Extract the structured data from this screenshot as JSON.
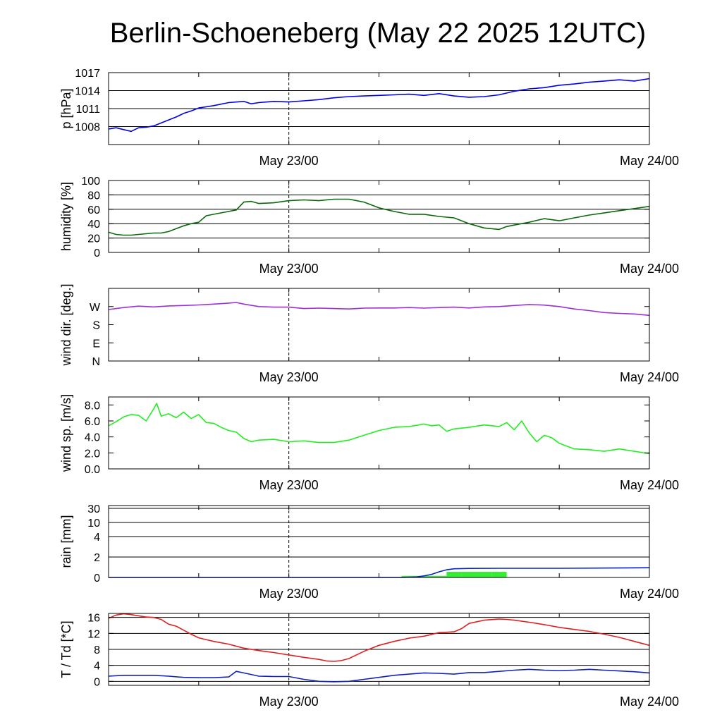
{
  "title": "Berlin-Schoeneberg (May 22 2025 12UTC)",
  "colors": {
    "pressure": "#0000ee",
    "humidity": "#0a6a0a",
    "wind_dir": "#9b30d8",
    "wind_speed": "#22ee22",
    "rain_cumulative": "#0022cc",
    "rain_bars": "#33ee33",
    "temperature": "#e02020",
    "dewpoint": "#1020c0"
  },
  "chart_data": [
    {
      "type": "line",
      "panel": "pressure",
      "ylabel": "p [hPa]",
      "ylim": [
        1005,
        1017
      ],
      "yticks": [
        1008,
        1011,
        1014,
        1017
      ],
      "ytick_labels": [
        "1008",
        "1011",
        "1014",
        "1017"
      ],
      "grid": true,
      "xlim_hours": [
        0,
        36
      ],
      "xtick_labels": [
        {
          "hour": 12,
          "label": "May 23/00"
        },
        {
          "hour": 36,
          "label": "May 24/00"
        }
      ],
      "series": [
        {
          "key": "pressure",
          "x": [
            0,
            0.5,
            1,
            1.5,
            2,
            2.5,
            3,
            3.5,
            4,
            4.5,
            5,
            5.5,
            6,
            6.5,
            7,
            8,
            9,
            9.5,
            10,
            11,
            12,
            13,
            14,
            15,
            16,
            17,
            18,
            19,
            20,
            21,
            22,
            23,
            24,
            25,
            26,
            27,
            28,
            29,
            30,
            31,
            32,
            33,
            34,
            35,
            36
          ],
          "y": [
            1007.6,
            1007.8,
            1007.5,
            1007.2,
            1007.8,
            1007.9,
            1008.1,
            1008.6,
            1009.1,
            1009.6,
            1010.2,
            1010.6,
            1011.1,
            1011.3,
            1011.5,
            1012.0,
            1012.2,
            1011.8,
            1012.0,
            1012.2,
            1012.1,
            1012.3,
            1012.5,
            1012.8,
            1013.0,
            1013.1,
            1013.2,
            1013.3,
            1013.4,
            1013.2,
            1013.5,
            1013.1,
            1012.9,
            1013.0,
            1013.3,
            1013.9,
            1014.3,
            1014.5,
            1014.9,
            1015.1,
            1015.4,
            1015.6,
            1015.8,
            1015.6,
            1016.0
          ]
        }
      ]
    },
    {
      "type": "line",
      "panel": "humidity",
      "ylabel": "humidity [%]",
      "ylim": [
        0,
        100
      ],
      "yticks": [
        0,
        20,
        40,
        60,
        80,
        100
      ],
      "ytick_labels": [
        "0",
        "20",
        "40",
        "60",
        "80",
        "100"
      ],
      "grid": true,
      "xlim_hours": [
        0,
        36
      ],
      "xtick_labels": [
        {
          "hour": 12,
          "label": "May 23/00"
        },
        {
          "hour": 36,
          "label": "May 24/00"
        }
      ],
      "series": [
        {
          "key": "humidity",
          "x": [
            0,
            0.5,
            1,
            1.5,
            2,
            2.5,
            3,
            3.5,
            4,
            4.5,
            5,
            5.5,
            6,
            6.5,
            7,
            7.5,
            8,
            8.5,
            9,
            9.5,
            10,
            11,
            12,
            13,
            14,
            15,
            16,
            17,
            18,
            19,
            20,
            21,
            22,
            23,
            24,
            24.5,
            25,
            26,
            26.5,
            27,
            27.5,
            28,
            29,
            30,
            31,
            32,
            33,
            34,
            35,
            36
          ],
          "y": [
            28,
            25,
            24,
            24,
            25,
            26,
            27,
            27,
            29,
            33,
            37,
            40,
            42,
            51,
            53,
            55,
            57,
            59,
            70,
            71,
            68,
            69,
            72,
            73,
            72,
            74,
            74,
            70,
            62,
            57,
            53,
            53,
            50,
            48,
            40,
            37,
            34,
            32,
            36,
            38,
            40,
            42,
            47,
            44,
            48,
            52,
            55,
            58,
            61,
            64
          ]
        }
      ]
    },
    {
      "type": "line",
      "panel": "wind_direction",
      "ylabel": "wind dir. [deg.]",
      "ylim": [
        0,
        360
      ],
      "yticks": [
        0,
        90,
        180,
        270
      ],
      "ytick_labels": [
        "N",
        "E",
        "S",
        "W"
      ],
      "grid": false,
      "xlim_hours": [
        0,
        36
      ],
      "xtick_labels": [
        {
          "hour": 12,
          "label": "May 23/00"
        },
        {
          "hour": 36,
          "label": "May 24/00"
        }
      ],
      "series": [
        {
          "key": "wind_dir",
          "x": [
            0,
            1,
            2,
            3,
            4,
            5,
            6,
            7,
            8,
            8.5,
            9,
            10,
            11,
            12,
            13,
            14,
            15,
            16,
            17,
            18,
            19,
            20,
            21,
            22,
            23,
            24,
            25,
            26,
            27,
            28,
            29,
            30,
            31,
            32,
            33,
            34,
            35,
            36
          ],
          "y": [
            255,
            265,
            272,
            268,
            273,
            275,
            278,
            282,
            287,
            290,
            282,
            270,
            267,
            267,
            260,
            262,
            260,
            258,
            262,
            263,
            263,
            265,
            262,
            265,
            267,
            263,
            268,
            270,
            275,
            280,
            277,
            270,
            258,
            250,
            240,
            236,
            233,
            226
          ]
        }
      ]
    },
    {
      "type": "line",
      "panel": "wind_speed",
      "ylabel": "wind sp. [m/s]",
      "ylim": [
        0,
        9
      ],
      "yticks": [
        0,
        2,
        4,
        6,
        8
      ],
      "ytick_labels": [
        "0.0",
        "2.0",
        "4.0",
        "6.0",
        "8.0"
      ],
      "grid": false,
      "xlim_hours": [
        0,
        36
      ],
      "xtick_labels": [
        {
          "hour": 12,
          "label": "May 23/00"
        },
        {
          "hour": 36,
          "label": "May 24/00"
        }
      ],
      "series": [
        {
          "key": "wind_speed",
          "x": [
            0,
            0.5,
            1,
            1.5,
            2,
            2.5,
            3,
            3.2,
            3.5,
            4,
            4.5,
            5,
            5.5,
            6,
            6.5,
            7,
            7.5,
            8,
            8.5,
            9,
            9.5,
            10,
            11,
            12,
            13,
            14,
            15,
            16,
            17,
            18,
            19,
            20,
            21,
            21.5,
            22,
            22.5,
            23,
            24,
            25,
            26,
            26.5,
            27,
            27.5,
            28,
            28.5,
            29,
            29.5,
            30,
            31,
            32,
            33,
            34,
            35,
            36
          ],
          "y": [
            5.4,
            5.9,
            6.5,
            6.8,
            6.7,
            6.0,
            7.5,
            8.2,
            6.6,
            6.9,
            6.4,
            7.1,
            6.3,
            6.8,
            5.8,
            5.7,
            5.2,
            4.8,
            4.6,
            3.8,
            3.4,
            3.6,
            3.7,
            3.4,
            3.5,
            3.3,
            3.3,
            3.6,
            4.2,
            4.8,
            5.2,
            5.3,
            5.6,
            5.4,
            5.5,
            4.7,
            5.0,
            5.2,
            5.5,
            5.3,
            5.8,
            4.9,
            6.0,
            4.5,
            3.4,
            4.2,
            3.9,
            3.2,
            2.5,
            2.4,
            2.2,
            2.5,
            2.2,
            1.9
          ]
        }
      ]
    },
    {
      "type": "bar",
      "panel": "rain",
      "ylabel": "rain [mm]",
      "ylim": [
        0,
        30
      ],
      "yscale": "nonlinear",
      "yticks": [
        0,
        2,
        4,
        10,
        30
      ],
      "ytick_labels": [
        "0",
        "2",
        "4",
        "10",
        "30"
      ],
      "grid": true,
      "xlim_hours": [
        0,
        36
      ],
      "xtick_labels": [
        {
          "hour": 12,
          "label": "May 23/00"
        },
        {
          "hour": 36,
          "label": "May 24/00"
        }
      ],
      "bars": {
        "key": "rain_bars",
        "hours": [
          19.5,
          20.5,
          21.5,
          22.5,
          23.5,
          24.5,
          25.5
        ],
        "values": [
          0.15,
          0.15,
          0.15,
          0.55,
          0.55,
          0.55,
          0.55
        ]
      },
      "series": [
        {
          "key": "rain_cumulative",
          "x": [
            0,
            19.5,
            20.5,
            21,
            21.5,
            22,
            22.5,
            23,
            24,
            26,
            30,
            36
          ],
          "y": [
            0,
            0,
            0.05,
            0.15,
            0.3,
            0.55,
            0.75,
            0.85,
            0.88,
            0.9,
            0.9,
            0.95
          ]
        }
      ]
    },
    {
      "type": "line",
      "panel": "temperature",
      "ylabel": "T / Td [*C]",
      "ylim": [
        -1,
        17
      ],
      "yticks": [
        0,
        4,
        8,
        12,
        16
      ],
      "ytick_labels": [
        "0",
        "4",
        "8",
        "12",
        "16"
      ],
      "grid": true,
      "xlim_hours": [
        0,
        36
      ],
      "xtick_labels": [
        {
          "hour": 12,
          "label": "May 23/00"
        },
        {
          "hour": 36,
          "label": "May 24/00"
        }
      ],
      "series": [
        {
          "key": "temperature",
          "x": [
            0,
            0.5,
            1,
            1.5,
            2,
            2.5,
            3,
            3.5,
            4,
            4.5,
            5,
            5.5,
            6,
            7,
            8,
            9,
            10,
            11,
            12,
            13,
            14,
            14.5,
            15,
            15.5,
            16,
            17,
            18,
            19,
            20,
            21,
            22,
            23,
            23.5,
            24,
            25,
            26,
            26.5,
            27,
            28,
            29,
            30,
            31,
            32,
            33,
            34,
            35,
            36
          ],
          "y": [
            15.8,
            16.6,
            16.9,
            16.7,
            16.4,
            16.1,
            16.0,
            15.5,
            14.3,
            13.8,
            12.8,
            11.8,
            10.9,
            10.0,
            9.3,
            8.3,
            7.7,
            7.2,
            6.6,
            6.0,
            5.5,
            5.1,
            5.0,
            5.2,
            5.7,
            7.5,
            9.0,
            10.0,
            10.8,
            11.3,
            12.2,
            12.4,
            13.2,
            14.5,
            15.3,
            15.6,
            15.5,
            15.3,
            14.8,
            14.2,
            13.5,
            13.0,
            12.5,
            11.8,
            11.0,
            10.0,
            9.0
          ]
        },
        {
          "key": "dewpoint",
          "x": [
            0,
            1,
            2,
            3,
            4,
            5,
            6,
            7,
            8,
            8.5,
            9,
            10,
            11,
            12,
            13,
            14,
            15,
            16,
            17,
            18,
            19,
            20,
            21,
            22,
            23,
            24,
            25,
            26,
            27,
            28,
            29,
            30,
            31,
            32,
            33,
            34,
            35,
            36
          ],
          "y": [
            1.3,
            1.5,
            1.5,
            1.5,
            1.3,
            1.0,
            0.9,
            0.9,
            1.1,
            2.5,
            2.1,
            1.3,
            1.2,
            1.2,
            0.5,
            0.0,
            -0.1,
            0.0,
            0.5,
            1.0,
            1.5,
            1.8,
            2.1,
            2.0,
            1.8,
            2.2,
            2.2,
            2.5,
            2.8,
            3.0,
            2.8,
            2.7,
            2.8,
            3.0,
            2.8,
            2.6,
            2.4,
            2.1
          ]
        }
      ]
    }
  ]
}
